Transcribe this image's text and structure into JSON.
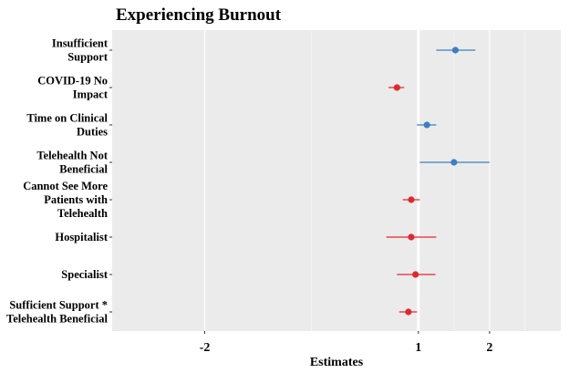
{
  "chart_data": {
    "type": "forest",
    "title": "Experiencing Burnout",
    "xlabel": "Estimates",
    "ylabel": "",
    "xlim": [
      -3.3,
      3.0
    ],
    "x_ticks": [
      -2,
      1,
      2
    ],
    "x_tick_labels": [
      "-2",
      "1",
      "2"
    ],
    "reference_line": 1,
    "grid": true,
    "colors": {
      "positive": "#3b7fc0",
      "negative": "#e0282e",
      "panel": "#ebebeb",
      "grid": "#ffffff"
    },
    "rows": [
      {
        "label_lines": [
          "Insufficient",
          "Support"
        ],
        "estimate": 1.52,
        "low": 1.25,
        "high": 1.8,
        "direction": "positive"
      },
      {
        "label_lines": [
          "COVID-19 No",
          "Impact"
        ],
        "estimate": 0.7,
        "low": 0.58,
        "high": 0.8,
        "direction": "negative"
      },
      {
        "label_lines": [
          "Time on Clinical",
          "Duties"
        ],
        "estimate": 1.12,
        "low": 0.98,
        "high": 1.25,
        "direction": "positive"
      },
      {
        "label_lines": [
          "Telehealth Not",
          "Beneficial"
        ],
        "estimate": 1.5,
        "low": 1.02,
        "high": 2.0,
        "direction": "positive"
      },
      {
        "label_lines": [
          "Cannot See More",
          "Patients with",
          "Telehealth"
        ],
        "estimate": 0.9,
        "low": 0.78,
        "high": 1.02,
        "direction": "negative"
      },
      {
        "label_lines": [
          "Hospitalist"
        ],
        "estimate": 0.9,
        "low": 0.55,
        "high": 1.25,
        "direction": "negative"
      },
      {
        "label_lines": [
          "Specialist"
        ],
        "estimate": 0.96,
        "low": 0.7,
        "high": 1.24,
        "direction": "negative"
      },
      {
        "label_lines": [
          "Sufficient Support *",
          "Telehealth Beneficial"
        ],
        "estimate": 0.86,
        "low": 0.73,
        "high": 0.98,
        "direction": "negative"
      }
    ]
  }
}
